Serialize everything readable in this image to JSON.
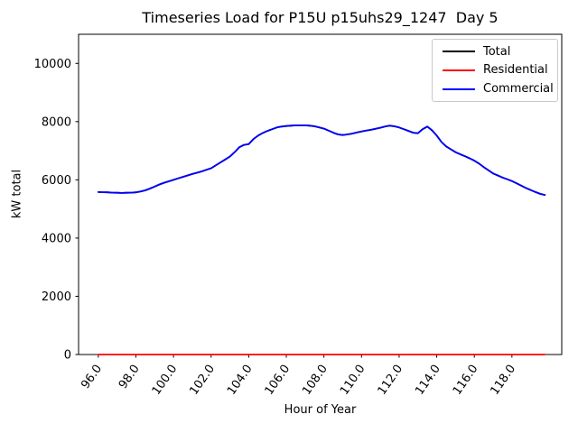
{
  "figure": {
    "background": "#ffffff"
  },
  "chart_data": {
    "type": "line",
    "title": "Timeseries Load for P15U p15uhs29_1247  Day 5",
    "xlabel": "Hour of Year",
    "ylabel": "kW total",
    "grid": false,
    "legend_position": "upper right",
    "xlim": [
      94.95,
      120.65
    ],
    "ylim": [
      0,
      11000
    ],
    "x_tick_values": [
      96,
      98,
      100,
      102,
      104,
      106,
      108,
      110,
      112,
      114,
      116,
      118
    ],
    "x_tick_labels": [
      "96.0",
      "98.0",
      "100.0",
      "102.0",
      "104.0",
      "106.0",
      "108.0",
      "110.0",
      "112.0",
      "114.0",
      "116.0",
      "118.0"
    ],
    "x_tick_rotation_deg": 55,
    "y_tick_values": [
      0,
      2000,
      4000,
      6000,
      8000,
      10000
    ],
    "y_tick_labels": [
      "0",
      "2000",
      "4000",
      "6000",
      "8000",
      "10000"
    ],
    "x_start": 96.0,
    "x_step": 0.25,
    "x_end": 119.75,
    "series": [
      {
        "name": "Total",
        "color": "#000000",
        "values_ref": "Commercial"
      },
      {
        "name": "Residential",
        "color": "#ff0000",
        "constant": 0
      },
      {
        "name": "Commercial",
        "color": "#0000ff",
        "values": [
          5580,
          5575,
          5570,
          5560,
          5555,
          5550,
          5555,
          5560,
          5570,
          5600,
          5640,
          5700,
          5770,
          5840,
          5900,
          5950,
          6000,
          6050,
          6100,
          6150,
          6200,
          6245,
          6290,
          6345,
          6400,
          6500,
          6600,
          6700,
          6800,
          6950,
          7120,
          7200,
          7230,
          7400,
          7520,
          7610,
          7680,
          7740,
          7800,
          7830,
          7850,
          7860,
          7870,
          7870,
          7870,
          7860,
          7840,
          7800,
          7760,
          7690,
          7620,
          7560,
          7540,
          7560,
          7590,
          7625,
          7660,
          7690,
          7720,
          7755,
          7790,
          7830,
          7860,
          7840,
          7800,
          7740,
          7680,
          7620,
          7600,
          7740,
          7830,
          7700,
          7520,
          7300,
          7150,
          7050,
          6950,
          6880,
          6810,
          6740,
          6660,
          6560,
          6440,
          6330,
          6220,
          6150,
          6080,
          6020,
          5960,
          5880,
          5800,
          5720,
          5650,
          5580,
          5520,
          5480
        ]
      }
    ]
  }
}
